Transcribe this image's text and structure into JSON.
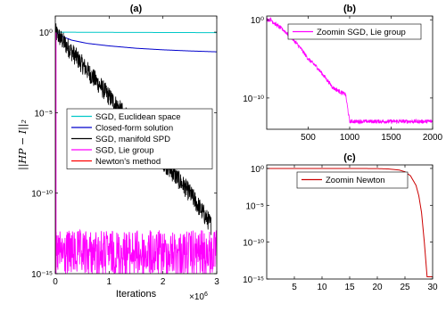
{
  "chart_data": [
    {
      "id": "a",
      "type": "line",
      "title": "(a)",
      "xlabel": "Iterations",
      "x_exponent_label": "×10",
      "x_exponent_power": "6",
      "ylabel": "||HP − I||₂",
      "yscale": "log",
      "xlim": [
        0,
        3
      ],
      "ylim": [
        1e-15,
        10
      ],
      "x_ticks": [
        0,
        1,
        2,
        3
      ],
      "x_tick_labels": [
        "0",
        "1",
        "2",
        "3"
      ],
      "y_ticks": [
        1,
        1e-05,
        1e-10,
        1e-15
      ],
      "y_tick_labels": [
        "10⁰",
        "10⁻⁵",
        "10⁻¹⁰",
        "10⁻¹⁵"
      ],
      "legend_position": "center-right",
      "series": [
        {
          "name": "SGD, Euclidean space",
          "color": "#00c8c8",
          "style": "solid",
          "x": [
            0,
            0.5,
            1,
            1.5,
            2,
            2.5,
            3
          ],
          "y": [
            1,
            0.98,
            0.97,
            0.96,
            0.95,
            0.94,
            0.93
          ]
        },
        {
          "name": "Closed-form solution",
          "color": "#0000cc",
          "style": "solid",
          "x": [
            0,
            0.1,
            0.3,
            0.6,
            1,
            1.5,
            2,
            2.5,
            3
          ],
          "y": [
            1,
            0.6,
            0.32,
            0.2,
            0.14,
            0.1,
            0.08,
            0.068,
            0.06
          ]
        },
        {
          "name": "SGD, manifold SPD",
          "color": "#000000",
          "style": "noisy",
          "x": [
            0,
            0.5,
            1,
            1.5,
            2,
            2.5,
            2.9
          ],
          "y": [
            1,
            0.01,
            0.0001,
            1e-06,
            1e-08,
            1e-10,
            1e-12
          ]
        },
        {
          "name": "SGD, Lie group",
          "color": "#ff00ff",
          "style": "noisy-band",
          "x": [
            0,
            0.01,
            0.03,
            0.5,
            1,
            1.5,
            2,
            2.5,
            3
          ],
          "y": [
            1,
            1e-12,
            1e-13,
            1e-13,
            1e-13,
            1e-13,
            1e-13,
            1e-13,
            1e-13
          ]
        },
        {
          "name": "Newton's method",
          "color": "#ff0000",
          "style": "solid",
          "x": [
            0,
            1e-05,
            2e-05
          ],
          "y": [
            1,
            1e-05,
            1e-15
          ]
        }
      ]
    },
    {
      "id": "b",
      "type": "line",
      "title": "(b)",
      "yscale": "log",
      "xlim": [
        0,
        2000
      ],
      "ylim": [
        1e-14,
        3
      ],
      "x_ticks": [
        500,
        1000,
        1500,
        2000
      ],
      "x_tick_labels": [
        "500",
        "1000",
        "1500",
        "2000"
      ],
      "y_ticks": [
        1,
        1e-10
      ],
      "y_tick_labels": [
        "10⁰",
        "10⁻¹⁰"
      ],
      "legend_position": "top-right",
      "series": [
        {
          "name": "Zoomin SGD, Lie group",
          "color": "#ff00ff",
          "style": "noisy",
          "x": [
            0,
            50,
            100,
            200,
            300,
            400,
            500,
            600,
            700,
            800,
            900,
            950,
            1000,
            1050,
            1500,
            2000
          ],
          "y": [
            1,
            1,
            0.3,
            0.05,
            0.005,
            0.0003,
            1e-05,
            1e-06,
            5e-08,
            2e-09,
            5e-10,
            3e-10,
            1e-13,
            1e-13,
            1e-13,
            1e-13
          ]
        }
      ]
    },
    {
      "id": "c",
      "type": "line",
      "title": "(c)",
      "yscale": "log",
      "xlim": [
        0,
        30
      ],
      "ylim": [
        1e-15,
        3
      ],
      "x_ticks": [
        5,
        10,
        15,
        20,
        25,
        30
      ],
      "x_tick_labels": [
        "5",
        "10",
        "15",
        "20",
        "25",
        "30"
      ],
      "y_ticks": [
        1,
        1e-05,
        1e-10,
        1e-15
      ],
      "y_tick_labels": [
        "10⁰",
        "10⁻⁵",
        "10⁻¹⁰",
        "10⁻¹⁵"
      ],
      "legend_position": "top-right",
      "series": [
        {
          "name": "Zoomin Newton",
          "color": "#cc0000",
          "style": "solid",
          "x": [
            0,
            5,
            10,
            15,
            20,
            22,
            24,
            25,
            26,
            27,
            27.5,
            28,
            28.5,
            29,
            30
          ],
          "y": [
            1,
            1,
            1,
            1,
            0.95,
            0.85,
            0.6,
            0.35,
            0.1,
            0.005,
            0.0002,
            1e-06,
            1e-10,
            2e-15,
            2e-15
          ]
        }
      ]
    }
  ]
}
